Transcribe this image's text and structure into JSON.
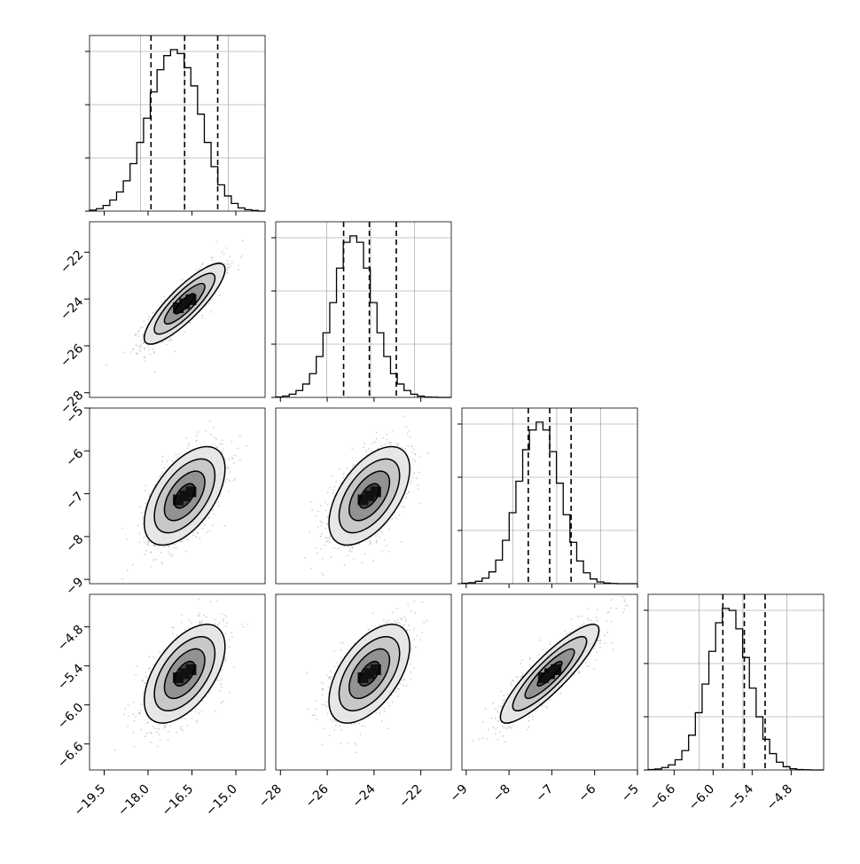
{
  "chart_data": {
    "type": "corner",
    "variables": [
      {
        "range": [
          -20.0,
          -14.0
        ],
        "ticks": [
          -19.5,
          -18.0,
          -16.5,
          -15.0
        ],
        "tick_labels": [
          "−19.5",
          "−18.0",
          "−16.5",
          "−15.0"
        ],
        "quantiles": [
          -17.9,
          -16.75,
          -15.62
        ],
        "mean": -16.75,
        "sd": 0.6,
        "hist_counts": [
          5,
          12,
          28,
          55,
          95,
          150,
          235,
          340,
          460,
          590,
          700,
          770,
          800,
          780,
          710,
          620,
          480,
          340,
          220,
          130,
          75,
          38,
          16,
          7,
          3,
          0
        ]
      },
      {
        "range": [
          -28.2,
          -20.7
        ],
        "ticks": [
          -28,
          -26,
          -24,
          -22
        ],
        "tick_labels": [
          "−28",
          "−26",
          "−24",
          "−22"
        ],
        "quantiles": [
          -25.3,
          -24.2,
          -23.05
        ],
        "mean": -24.2,
        "sd": 0.75,
        "hist_counts": [
          2,
          6,
          15,
          32,
          62,
          110,
          190,
          300,
          440,
          600,
          720,
          750,
          720,
          600,
          440,
          300,
          190,
          110,
          62,
          32,
          15,
          6,
          2,
          1,
          0,
          0
        ]
      },
      {
        "range": [
          -9.1,
          -5.0
        ],
        "ticks": [
          -9,
          -8,
          -7,
          -6,
          -5
        ],
        "tick_labels": [
          "−9",
          "−8",
          "−7",
          "−6",
          "−5"
        ],
        "quantiles": [
          -7.55,
          -7.05,
          -6.55
        ],
        "mean": -7.05,
        "sd": 0.5,
        "hist_counts": [
          2,
          5,
          12,
          28,
          60,
          120,
          220,
          360,
          520,
          680,
          780,
          820,
          780,
          670,
          510,
          350,
          210,
          115,
          55,
          24,
          9,
          3,
          1,
          0,
          0,
          0
        ]
      },
      {
        "range": [
          -7.0,
          -4.3
        ],
        "ticks": [
          -6.6,
          -6.0,
          -5.4,
          -4.8
        ],
        "tick_labels": [
          "−6.6",
          "−6.0",
          "−5.4",
          "−4.8"
        ],
        "quantiles": [
          -5.85,
          -5.52,
          -5.2
        ],
        "mean": -5.52,
        "sd": 0.33,
        "hist_counts": [
          2,
          5,
          12,
          25,
          50,
          95,
          170,
          280,
          420,
          580,
          720,
          790,
          780,
          690,
          550,
          400,
          260,
          150,
          80,
          38,
          16,
          6,
          2,
          1,
          0,
          0
        ]
      }
    ],
    "correlations": [
      [
        1.0,
        0.85,
        0.55,
        0.55
      ],
      [
        0.85,
        1.0,
        0.55,
        0.55
      ],
      [
        0.55,
        0.55,
        1.0,
        0.88
      ],
      [
        0.55,
        0.55,
        0.88,
        1.0
      ]
    ],
    "contour_levels_sigma": [
      0.5,
      1.0,
      1.5,
      2.0
    ],
    "grid": true
  }
}
